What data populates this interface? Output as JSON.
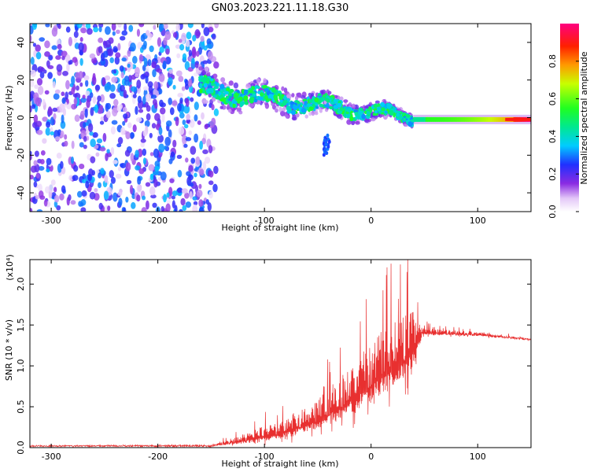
{
  "title": "GN03.2023.221.11.18.G30",
  "chart_data": [
    {
      "type": "heatmap",
      "xlabel": "Height of straight line (km)",
      "ylabel": "Frequency (Hz)",
      "xlim": [
        -320,
        150
      ],
      "ylim": [
        -50,
        50
      ],
      "xticks": [
        -300,
        -200,
        -100,
        0,
        100
      ],
      "yticks": [
        -40,
        -20,
        0,
        20,
        40
      ],
      "colorbar": {
        "label": "Normalized spectral amplitude",
        "range": [
          0.0,
          1.0
        ],
        "ticks": [
          "0.0",
          "0.2",
          "0.4",
          "0.6",
          "0.8"
        ]
      },
      "features": [
        {
          "region": "broadband noise",
          "x_range": [
            -320,
            -145
          ],
          "y_range": [
            -50,
            50
          ],
          "amplitude": [
            0.1,
            0.35
          ]
        },
        {
          "region": "descending trace",
          "x_start": -160,
          "x_end": 40,
          "freq_start": 15,
          "freq_end": 0,
          "amplitude": [
            0.3,
            0.55
          ]
        },
        {
          "region": "secondary blob",
          "x": -42,
          "freq": -18,
          "amplitude": 0.25
        },
        {
          "region": "steady line",
          "x_start": 40,
          "x_end": 150,
          "freq": -1,
          "amplitude": [
            0.55,
            1.0
          ]
        }
      ]
    },
    {
      "type": "line",
      "xlabel": "Height of straight line (km)",
      "ylabel": "SNR (10 * v/v)",
      "yscale_label": "(x10⁴)",
      "xlim": [
        -320,
        150
      ],
      "ylim": [
        0.0,
        2.3
      ],
      "xticks": [
        -300,
        -200,
        -100,
        0,
        100
      ],
      "yticks": [
        "0.0",
        "0.5",
        "1.0",
        "1.5",
        "2.0"
      ],
      "series": [
        {
          "color": "#e83030",
          "envelope": [
            {
              "x": -320,
              "base": 0.02,
              "amp": 0.0
            },
            {
              "x": -150,
              "base": 0.02,
              "amp": 0.02
            },
            {
              "x": -120,
              "base": 0.08,
              "amp": 0.15
            },
            {
              "x": -80,
              "base": 0.18,
              "amp": 0.38
            },
            {
              "x": -50,
              "base": 0.32,
              "amp": 0.55
            },
            {
              "x": -20,
              "base": 0.55,
              "amp": 0.9
            },
            {
              "x": 0,
              "base": 0.75,
              "amp": 1.1
            },
            {
              "x": 20,
              "base": 0.95,
              "amp": 1.2
            },
            {
              "x": 40,
              "base": 1.15,
              "amp": 1.05
            },
            {
              "x": 48,
              "base": 1.4,
              "amp": 0.12
            },
            {
              "x": 100,
              "base": 1.38,
              "amp": 0.06
            },
            {
              "x": 150,
              "base": 1.32,
              "amp": 0.03
            }
          ]
        }
      ]
    }
  ]
}
